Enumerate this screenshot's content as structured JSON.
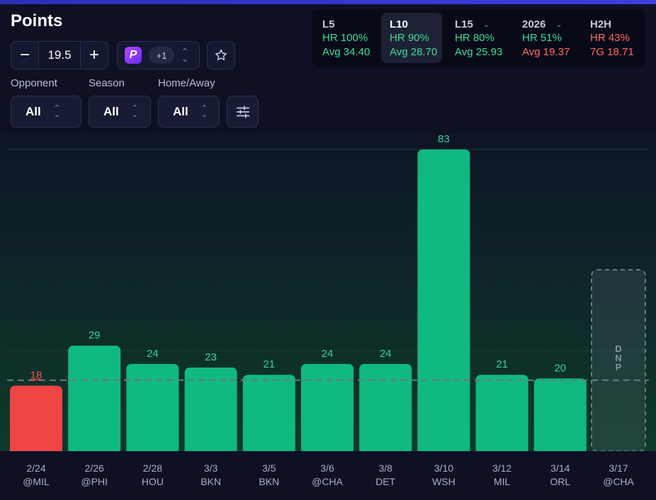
{
  "header": {
    "title": "Points"
  },
  "line_control": {
    "minus": "−",
    "value": "19.5",
    "plus": "+"
  },
  "book_selector": {
    "logo": "P",
    "count": "+1"
  },
  "filters": [
    {
      "label": "Opponent",
      "value": "All"
    },
    {
      "label": "Season",
      "value": "All"
    },
    {
      "label": "Home/Away",
      "value": "All"
    }
  ],
  "stats": [
    {
      "name": "L5",
      "line1": "HR 100%",
      "line2": "Avg 34.40",
      "dropdown": false,
      "line1_color": "green",
      "line2_color": "green"
    },
    {
      "name": "L10",
      "line1": "HR 90%",
      "line2": "Avg 28.70",
      "dropdown": false,
      "active": true,
      "line1_color": "green",
      "line2_color": "green"
    },
    {
      "name": "L15",
      "line1": "HR 80%",
      "line2": "Avg 25.93",
      "dropdown": true,
      "line1_color": "green",
      "line2_color": "green"
    },
    {
      "name": "2026",
      "line1": "HR 51%",
      "line2": "Avg 19.37",
      "dropdown": true,
      "line1_color": "green",
      "line2_color": "red"
    },
    {
      "name": "H2H",
      "line1": "HR 43%",
      "line2": "7G 18.71",
      "dropdown": false,
      "line1_color": "red",
      "line2_color": "red"
    }
  ],
  "colors": {
    "over": "#10b981",
    "under": "#ef4444",
    "under_label": "#ef5350",
    "label_green": "#34d399",
    "dnp_text": "#8a93a8"
  },
  "chart_data": {
    "type": "bar",
    "title": "",
    "xlabel": "",
    "ylabel": "",
    "threshold": 19.5,
    "ylim": [
      0,
      83
    ],
    "grid": true,
    "games": [
      {
        "date": "2/24",
        "opp": "@MIL",
        "value": 18
      },
      {
        "date": "2/26",
        "opp": "@PHI",
        "value": 29
      },
      {
        "date": "2/28",
        "opp": "HOU",
        "value": 24
      },
      {
        "date": "3/3",
        "opp": "BKN",
        "value": 23
      },
      {
        "date": "3/5",
        "opp": "BKN",
        "value": 21
      },
      {
        "date": "3/6",
        "opp": "@CHA",
        "value": 24
      },
      {
        "date": "3/8",
        "opp": "DET",
        "value": 24
      },
      {
        "date": "3/10",
        "opp": "WSH",
        "value": 83
      },
      {
        "date": "3/12",
        "opp": "MIL",
        "value": 21
      },
      {
        "date": "3/14",
        "opp": "ORL",
        "value": 20
      },
      {
        "date": "3/17",
        "opp": "@CHA",
        "value": null,
        "status": "DNP"
      }
    ]
  }
}
